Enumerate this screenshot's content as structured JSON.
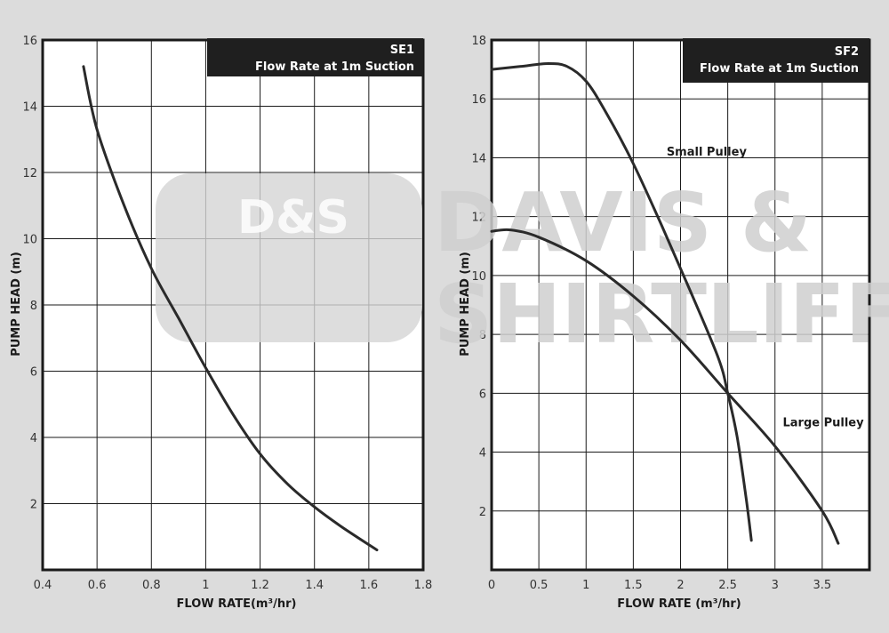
{
  "watermark": {
    "logo_text": "D&S",
    "line1": "DAVIS &",
    "line2": "SHIRTLIFF"
  },
  "chart_data": [
    {
      "type": "line",
      "title": "SE1",
      "subtitle": "Flow Rate at 1m Suction",
      "xlabel": "FLOW RATE(m³/hr)",
      "ylabel": "PUMP HEAD (m)",
      "xlim": [
        0.4,
        1.8
      ],
      "ylim": [
        0,
        16
      ],
      "xticks": [
        0.4,
        0.6,
        0.8,
        1,
        1.2,
        1.4,
        1.6,
        1.8
      ],
      "xtick_labels": [
        "0.4",
        "0.6",
        "0.8",
        "1",
        "1.2",
        "1.4",
        "1.6",
        "1.8"
      ],
      "yticks": [
        2,
        4,
        6,
        8,
        10,
        12,
        14,
        16
      ],
      "ytick_labels": [
        "2",
        "4",
        "6",
        "8",
        "10",
        "12",
        "14",
        "16"
      ],
      "grid": true,
      "series": [
        {
          "name": "",
          "x": [
            0.55,
            0.6,
            0.7,
            0.8,
            0.9,
            1.0,
            1.1,
            1.2,
            1.3,
            1.4,
            1.5,
            1.63
          ],
          "y": [
            15.2,
            13.3,
            11.0,
            9.1,
            7.6,
            6.1,
            4.7,
            3.5,
            2.6,
            1.9,
            1.3,
            0.6
          ]
        }
      ],
      "annotations": []
    },
    {
      "type": "line",
      "title": "SF2",
      "subtitle": "Flow Rate at 1m Suction",
      "xlabel": "FLOW RATE (m³/hr)",
      "ylabel": "PUMP HEAD (m)",
      "xlim": [
        0,
        4
      ],
      "ylim": [
        0,
        18
      ],
      "xticks": [
        0,
        0.5,
        1,
        1.5,
        2,
        2.5,
        3,
        3.5
      ],
      "xtick_labels": [
        "0",
        "0.5",
        "1",
        "1.5",
        "2",
        "2.5",
        "3",
        "3.5"
      ],
      "yticks": [
        2,
        4,
        6,
        8,
        10,
        12,
        14,
        16,
        18
      ],
      "ytick_labels": [
        "2",
        "4",
        "6",
        "8",
        "10",
        "12",
        "14",
        "16",
        "18"
      ],
      "grid": true,
      "series": [
        {
          "name": "Small Pulley",
          "x": [
            0,
            0.3,
            0.6,
            0.8,
            1.0,
            1.2,
            1.5,
            1.8,
            2.1,
            2.4,
            2.5,
            2.6,
            2.7,
            2.75
          ],
          "y": [
            17.0,
            17.1,
            17.2,
            17.1,
            16.6,
            15.6,
            13.8,
            11.7,
            9.5,
            7.2,
            6.0,
            4.5,
            2.3,
            1.0
          ]
        },
        {
          "name": "Large Pulley",
          "x": [
            0,
            0.2,
            0.5,
            1.0,
            1.5,
            2.0,
            2.5,
            3.0,
            3.5,
            3.67
          ],
          "y": [
            11.5,
            11.55,
            11.3,
            10.5,
            9.3,
            7.8,
            6.0,
            4.2,
            2.0,
            0.9
          ]
        }
      ],
      "annotations": [
        {
          "text": "Small Pulley",
          "x": 1.57,
          "y": 14.2
        },
        {
          "text": "Large Pulley",
          "x": 2.8,
          "y": 5.0
        }
      ]
    }
  ]
}
